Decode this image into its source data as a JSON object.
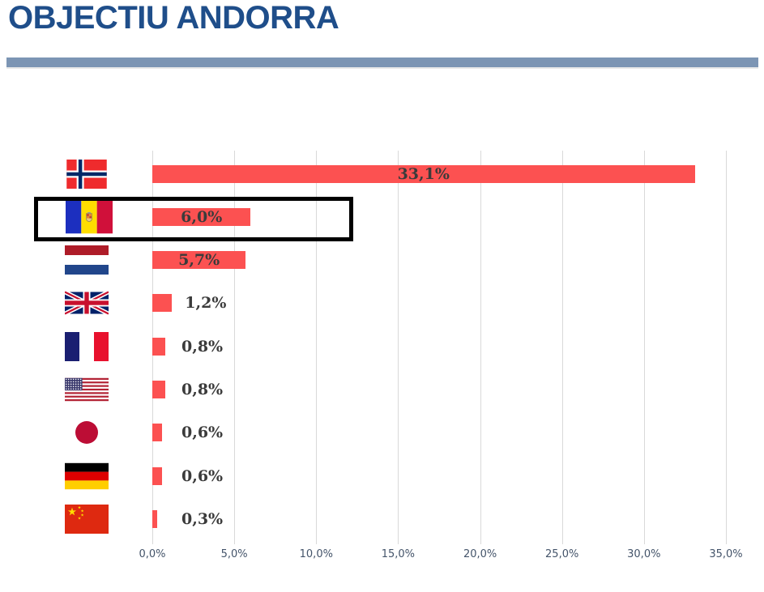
{
  "page": {
    "title": "OBJECTIU ANDORRA"
  },
  "chart_data": {
    "type": "bar",
    "orientation": "horizontal",
    "title": "OBJECTIU ANDORRA",
    "categories": [
      "Norway",
      "Andorra",
      "Netherlands",
      "United Kingdom",
      "France",
      "United States",
      "Japan",
      "Germany",
      "China"
    ],
    "values": [
      33.1,
      6.0,
      5.7,
      1.2,
      0.8,
      0.8,
      0.6,
      0.6,
      0.3
    ],
    "value_labels": [
      "33,1%",
      "6,0%",
      "5,7%",
      "1,2%",
      "0,8%",
      "0,8%",
      "0,6%",
      "0,6%",
      "0,3%"
    ],
    "flag_icons": [
      "norway-flag",
      "andorra-flag",
      "netherlands-flag",
      "united-kingdom-flag",
      "france-flag",
      "united-states-flag",
      "japan-flag",
      "germany-flag",
      "china-flag"
    ],
    "x_tick_labels": [
      "0,0%",
      "5,0%",
      "10,0%",
      "15,0%",
      "20,0%",
      "25,0%",
      "30,0%",
      "35,0%"
    ],
    "x_tick_values": [
      0,
      5,
      10,
      15,
      20,
      25,
      30,
      35
    ],
    "xlim": [
      0,
      35
    ],
    "grid": true,
    "legend": false,
    "highlighted_category": "Andorra",
    "highlight_style": "black-outline-rectangle"
  },
  "colors": {
    "title": "#1F4E8A",
    "divider": "#7C95B4",
    "bar": "#FC5151",
    "value_label": "#3B3B3B",
    "axis_label": "#44546A",
    "gridline": "#D9D9D9",
    "highlight_border": "#000000"
  }
}
